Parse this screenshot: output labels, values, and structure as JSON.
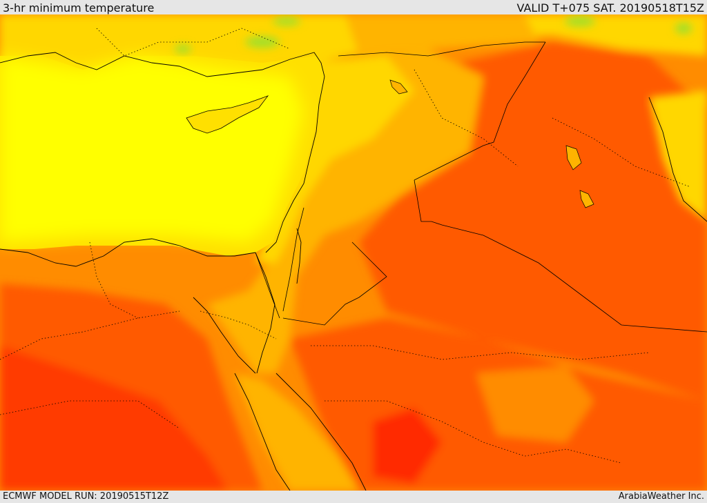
{
  "header": {
    "title": "3-hr minimum temperature",
    "valid": "VALID T+075 SAT. 20190518T15Z"
  },
  "footer": {
    "model_run": "ECMWF MODEL RUN: 20190515T12Z",
    "credit": "ArabiaWeather Inc."
  },
  "map": {
    "legend_present": false,
    "palette": {
      "green": "#9fe02a",
      "yellow_green": "#d8f000",
      "yellow": "#ffff00",
      "gold": "#ffd700",
      "light_orange": "#ffb400",
      "orange": "#ff8c00",
      "dark_orange": "#ff5a00",
      "red": "#ff2a00"
    },
    "boundaries": {
      "coastline_color": "#000000",
      "border_style": "dotted"
    }
  }
}
